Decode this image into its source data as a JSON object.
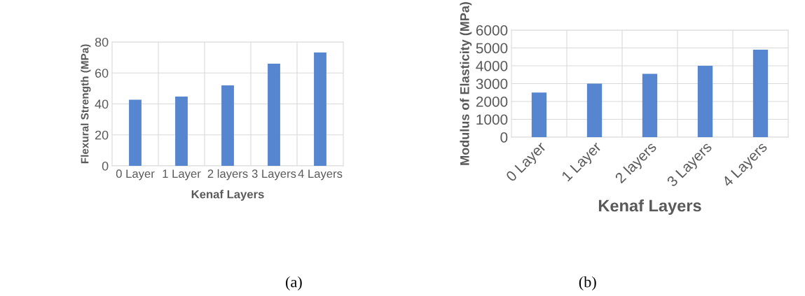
{
  "chart_data": [
    {
      "type": "bar",
      "xlabel": "Kenaf Layers",
      "ylabel": "Flexural Strength (MPa)",
      "categories": [
        "0 Layer",
        "1 Layer",
        "2 layers",
        "3 Layers",
        "4 Layers"
      ],
      "values": [
        42.7,
        44.8,
        52.0,
        66.0,
        73.2
      ],
      "color": "#5586cf",
      "ylim": [
        0,
        80
      ],
      "yticks": [
        0,
        20,
        40,
        60,
        80
      ],
      "grid": true,
      "annotations": [
        "(a)"
      ]
    },
    {
      "type": "bar",
      "xlabel": "Kenaf Layers",
      "ylabel": "Modulus of Elasticity (MPa)",
      "categories": [
        "0 Layer",
        "1 Layer",
        "2 layers",
        "3 Layers",
        "4 Layers"
      ],
      "values": [
        2500,
        3000,
        3550,
        4000,
        4900
      ],
      "color": "#5586cf",
      "ylim": [
        0,
        6000
      ],
      "yticks": [
        0,
        1000,
        2000,
        3000,
        4000,
        5000,
        6000
      ],
      "grid": true,
      "annotations": [
        "(b)"
      ]
    }
  ]
}
